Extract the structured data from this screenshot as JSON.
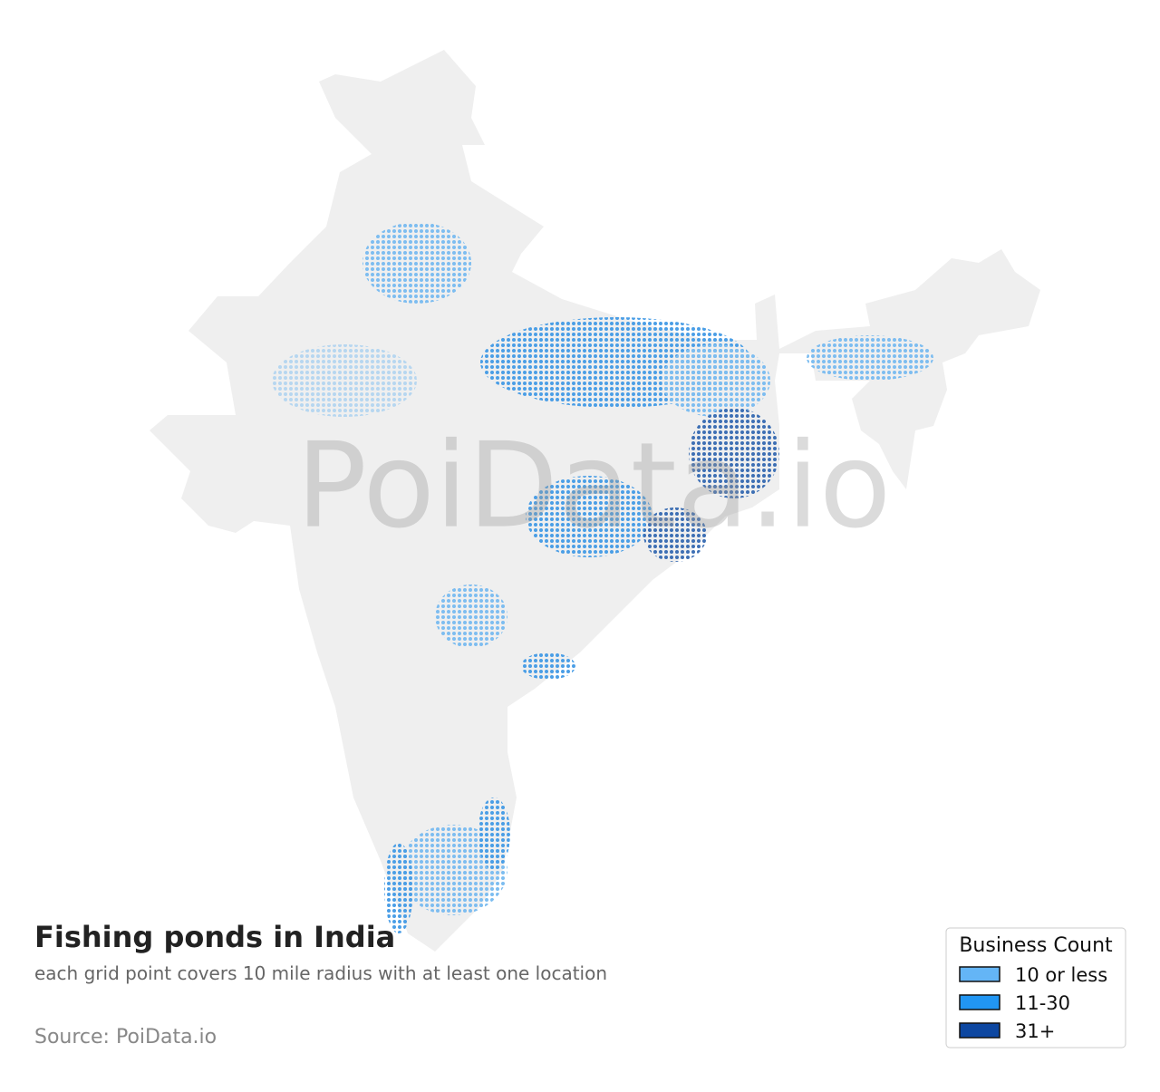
{
  "title": "Fishing ponds in India",
  "subtitle": "each grid point covers 10 mile radius with at least one location",
  "source": "Source: PoiData.io",
  "watermark": "PoiData.io",
  "legend": {
    "title": "Business Count",
    "items": [
      {
        "label": "10 or less",
        "color": "#64b5f6"
      },
      {
        "label": "11-30",
        "color": "#2196f3"
      },
      {
        "label": "31+",
        "color": "#0d47a1"
      }
    ]
  }
}
